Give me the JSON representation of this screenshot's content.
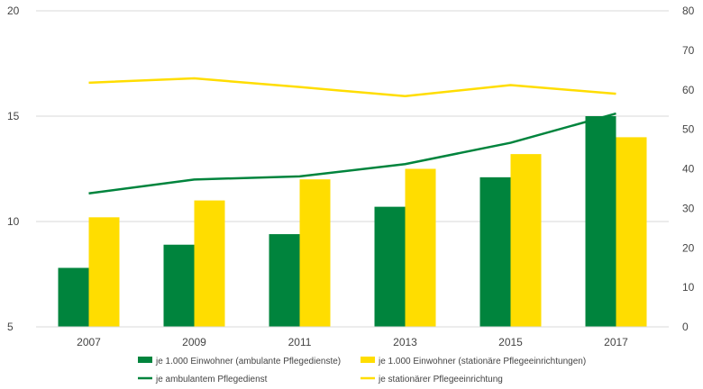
{
  "chart_data": {
    "type": "bar",
    "categories": [
      "2007",
      "2009",
      "2011",
      "2013",
      "2015",
      "2017"
    ],
    "series": [
      {
        "name": "je 1.000 Einwohner (ambulante Pflegedienste)",
        "kind": "bar",
        "axis": "left",
        "color": "#00843D",
        "values": [
          7.8,
          8.9,
          9.4,
          10.7,
          12.1,
          15.0
        ]
      },
      {
        "name": "je 1.000 Einwohner (stationäre Pflegeeinrichtungen)",
        "kind": "bar",
        "axis": "left",
        "color": "#FFDD00",
        "values": [
          10.2,
          11.0,
          12.0,
          12.5,
          13.2,
          14.0
        ]
      },
      {
        "name": "je ambulantem Pflegedienst",
        "kind": "line",
        "axis": "right",
        "color": "#00843D",
        "values": [
          33.8,
          37.3,
          38.1,
          41.2,
          46.6,
          54.0
        ]
      },
      {
        "name": "je stationärer Pflegeeinrichtung",
        "kind": "line",
        "axis": "right",
        "color": "#FFDD00",
        "values": [
          61.8,
          62.9,
          60.7,
          58.4,
          61.2,
          59.0
        ]
      }
    ],
    "y_left": {
      "min": 5,
      "max": 20,
      "ticks": [
        "5",
        "10",
        "15",
        "20"
      ]
    },
    "y_right": {
      "min": 0,
      "max": 80,
      "ticks": [
        "0",
        "10",
        "20",
        "30",
        "40",
        "50",
        "60",
        "70",
        "80"
      ]
    },
    "grid": true,
    "legend": "bottom",
    "title": "",
    "xlabel": "",
    "ylabel": ""
  }
}
